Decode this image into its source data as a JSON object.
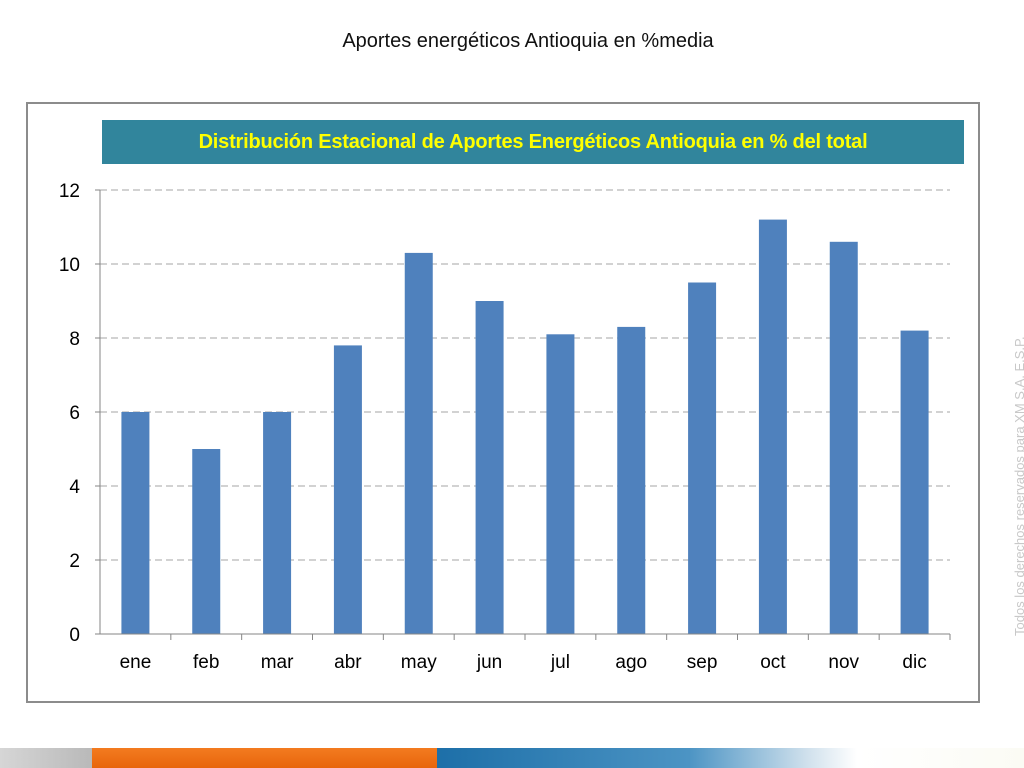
{
  "slide": {
    "title": "Aportes energéticos Antioquia en %media",
    "watermark": "Todos los derechos reservados para XM S.A. E.S.P."
  },
  "colors": {
    "banner_background": "#31859c",
    "banner_text": "#ffff00",
    "bar": "#4f81bd",
    "gridline": "#a6a6a6",
    "axis": "#868686",
    "footer": [
      "#c0c0c0",
      "#f37b20",
      "#1d6fa8"
    ]
  },
  "chart_data": {
    "type": "bar",
    "title": "Distribución Estacional de Aportes Energéticos Antioquia en % del total",
    "xlabel": "",
    "ylabel": "",
    "categories": [
      "ene",
      "feb",
      "mar",
      "abr",
      "may",
      "jun",
      "jul",
      "ago",
      "sep",
      "oct",
      "nov",
      "dic"
    ],
    "values": [
      6.0,
      5.0,
      6.0,
      7.8,
      10.3,
      9.0,
      8.1,
      8.3,
      9.5,
      11.2,
      10.6,
      8.2
    ],
    "ylim": [
      0,
      12
    ],
    "yticks": [
      0,
      2,
      4,
      6,
      8,
      10,
      12
    ],
    "grid": "horizontal dashed",
    "legend": "none"
  }
}
